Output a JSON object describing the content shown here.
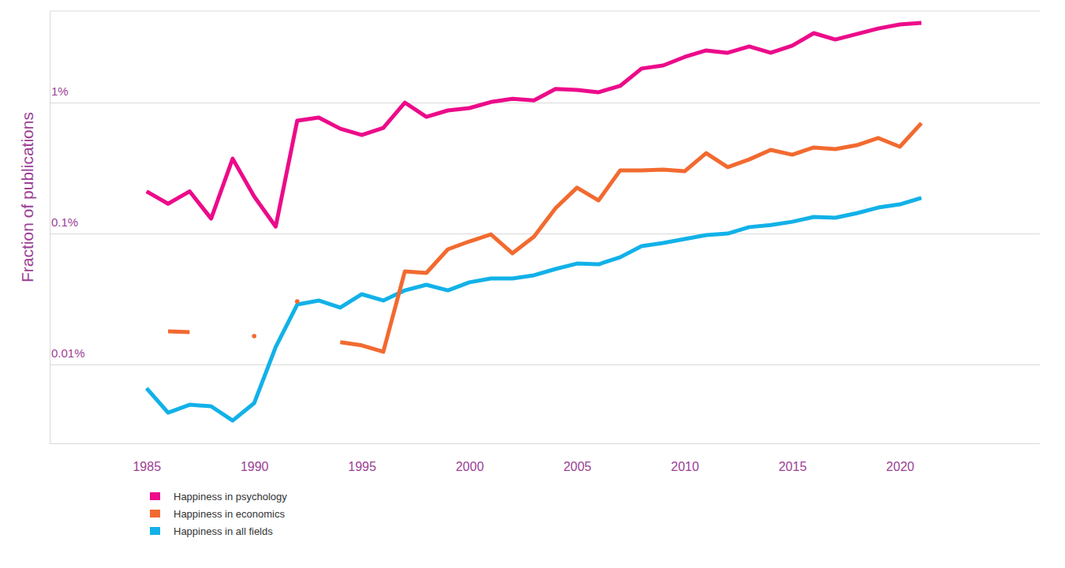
{
  "chart_data": {
    "type": "line",
    "y_label": "Fraction of publications",
    "log": "y",
    "grid": true,
    "legend": "bottom-left",
    "xlim": [
      1980.5,
      2026.5
    ],
    "xticks": [
      1985,
      1990,
      1995,
      2000,
      2005,
      2010,
      2015,
      2020
    ],
    "ylim": [
      0.0025,
      5
    ],
    "yticks": [
      {
        "value": 0.01,
        "label": "0.01%"
      },
      {
        "value": 0.1,
        "label": "0.1%"
      },
      {
        "value": 1,
        "label": "1%"
      }
    ],
    "x": [
      1985,
      1986,
      1987,
      1988,
      1989,
      1990,
      1991,
      1992,
      1993,
      1994,
      1995,
      1996,
      1997,
      1998,
      1999,
      2000,
      2001,
      2002,
      2003,
      2004,
      2005,
      2006,
      2007,
      2008,
      2009,
      2010,
      2011,
      2012,
      2013,
      2014,
      2015,
      2016,
      2017,
      2018,
      2019,
      2020,
      2021
    ],
    "series": [
      {
        "name": "Happiness in psychology",
        "color": "#ec0b8a",
        "values": [
          0.21,
          0.169,
          0.21,
          0.13,
          0.373,
          0.192,
          0.113,
          0.727,
          0.769,
          0.632,
          0.566,
          0.641,
          1.0,
          0.779,
          0.871,
          0.908,
          1.01,
          1.07,
          1.04,
          1.27,
          1.25,
          1.2,
          1.34,
          1.82,
          1.92,
          2.23,
          2.5,
          2.4,
          2.68,
          2.4,
          2.72,
          3.39,
          3.03,
          3.34,
          3.68,
          3.95,
          4.06
        ]
      },
      {
        "name": "Happiness in economics",
        "color": "#f26a30",
        "values": [
          null,
          0.0179,
          0.0177,
          null,
          null,
          0.0165,
          null,
          0.0303,
          null,
          0.0148,
          0.014,
          0.0125,
          0.0514,
          0.05,
          0.0758,
          0.0871,
          0.0986,
          0.0707,
          0.0946,
          0.156,
          0.224,
          0.179,
          0.303,
          0.303,
          0.308,
          0.299,
          0.411,
          0.321,
          0.368,
          0.435,
          0.4,
          0.454,
          0.441,
          0.473,
          0.536,
          0.46,
          0.697
        ]
      },
      {
        "name": "Happiness in all fields",
        "color": "#12b1e8",
        "values": [
          0.00659,
          0.00429,
          0.00493,
          0.0048,
          0.00373,
          0.00507,
          0.0136,
          0.0287,
          0.0308,
          0.0272,
          0.0344,
          0.0308,
          0.0368,
          0.0406,
          0.0368,
          0.0424,
          0.0454,
          0.0454,
          0.048,
          0.0536,
          0.059,
          0.0582,
          0.0659,
          0.0801,
          0.0847,
          0.0908,
          0.0973,
          0.1,
          0.112,
          0.116,
          0.123,
          0.134,
          0.132,
          0.143,
          0.158,
          0.167,
          0.187
        ]
      }
    ]
  }
}
